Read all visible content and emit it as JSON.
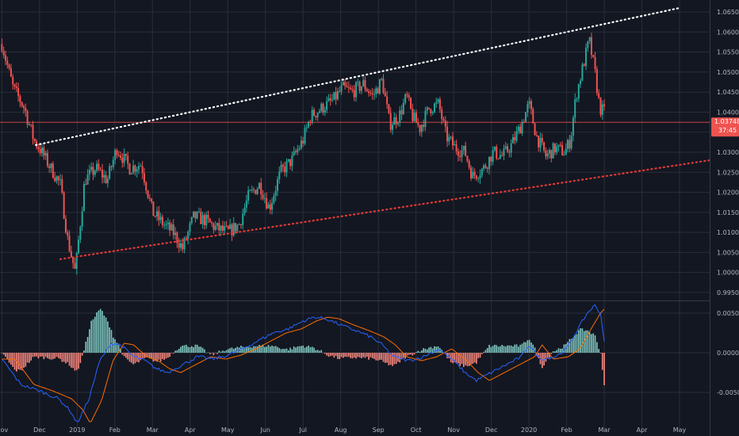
{
  "colors": {
    "background": "#131722",
    "grid": "#2a2e39",
    "separator": "#363a45",
    "text": "#b2b5be",
    "up": "#26a69a",
    "down": "#ef5350",
    "macd": "#2962ff",
    "signal": "#ff6d00",
    "hist_up": "#80cbc4",
    "hist_down": "#ff8a80",
    "upper_trendline": "#ffffff",
    "lower_trendline": "#e53935",
    "price_line": "#ef5350"
  },
  "chart_data": [
    {
      "type": "candlestick",
      "x_axis": {
        "labels": [
          {
            "t": 0.0,
            "text": "Nov"
          },
          {
            "t": 1.0,
            "text": "Dec"
          },
          {
            "t": 2.0,
            "text": "2019"
          },
          {
            "t": 3.0,
            "text": "Feb"
          },
          {
            "t": 4.0,
            "text": "Mar"
          },
          {
            "t": 5.0,
            "text": "Apr"
          },
          {
            "t": 6.0,
            "text": "May"
          },
          {
            "t": 7.0,
            "text": "Jun"
          },
          {
            "t": 8.0,
            "text": "Jul"
          },
          {
            "t": 9.0,
            "text": "Aug"
          },
          {
            "t": 10.0,
            "text": "Sep"
          },
          {
            "t": 11.0,
            "text": "Oct"
          },
          {
            "t": 12.0,
            "text": "Nov"
          },
          {
            "t": 13.0,
            "text": "Dec"
          },
          {
            "t": 14.0,
            "text": "2020"
          },
          {
            "t": 15.0,
            "text": "Feb"
          },
          {
            "t": 16.0,
            "text": "Mar"
          },
          {
            "t": 17.0,
            "text": "Apr"
          },
          {
            "t": 18.0,
            "text": "May"
          }
        ],
        "range": [
          -0.05,
          18.8
        ]
      },
      "y_axis": {
        "ticks": [
          "0.99500",
          "1.00000",
          "1.00500",
          "1.01000",
          "1.01500",
          "1.02000",
          "1.02500",
          "1.03000",
          "1.03500",
          "1.04000",
          "1.04500",
          "1.05000",
          "1.05500",
          "1.06000",
          "1.06500"
        ],
        "range": [
          0.9938,
          1.0672
        ]
      },
      "anchors": [
        [
          0.0,
          1.057
        ],
        [
          0.3,
          1.046
        ],
        [
          0.6,
          1.041
        ],
        [
          0.85,
          1.033
        ],
        [
          1.0,
          1.031
        ],
        [
          1.3,
          1.026
        ],
        [
          1.55,
          1.022
        ],
        [
          1.75,
          1.008
        ],
        [
          1.95,
          1.0
        ],
        [
          2.2,
          1.023
        ],
        [
          2.5,
          1.026
        ],
        [
          2.8,
          1.023
        ],
        [
          3.05,
          1.031
        ],
        [
          3.4,
          1.026
        ],
        [
          3.7,
          1.027
        ],
        [
          4.0,
          1.015
        ],
        [
          4.3,
          1.012
        ],
        [
          4.55,
          1.01
        ],
        [
          4.8,
          1.006
        ],
        [
          5.1,
          1.014
        ],
        [
          5.4,
          1.013
        ],
        [
          5.7,
          1.011
        ],
        [
          6.0,
          1.01
        ],
        [
          6.3,
          1.012
        ],
        [
          6.55,
          1.019
        ],
        [
          6.85,
          1.022
        ],
        [
          7.1,
          1.016
        ],
        [
          7.4,
          1.025
        ],
        [
          7.7,
          1.028
        ],
        [
          8.0,
          1.033
        ],
        [
          8.2,
          1.039
        ],
        [
          8.5,
          1.041
        ],
        [
          8.8,
          1.043
        ],
        [
          9.05,
          1.046
        ],
        [
          9.3,
          1.045
        ],
        [
          9.6,
          1.047
        ],
        [
          9.85,
          1.044
        ],
        [
          10.1,
          1.048
        ],
        [
          10.3,
          1.037
        ],
        [
          10.55,
          1.039
        ],
        [
          10.75,
          1.044
        ],
        [
          10.9,
          1.039
        ],
        [
          11.1,
          1.036
        ],
        [
          11.35,
          1.041
        ],
        [
          11.6,
          1.042
        ],
        [
          11.8,
          1.034
        ],
        [
          12.05,
          1.031
        ],
        [
          12.3,
          1.03
        ],
        [
          12.5,
          1.024
        ],
        [
          12.8,
          1.026
        ],
        [
          13.05,
          1.03
        ],
        [
          13.3,
          1.029
        ],
        [
          13.55,
          1.032
        ],
        [
          13.8,
          1.037
        ],
        [
          14.0,
          1.042
        ],
        [
          14.2,
          1.034
        ],
        [
          14.45,
          1.029
        ],
        [
          14.7,
          1.031
        ],
        [
          14.95,
          1.03
        ],
        [
          15.1,
          1.033
        ],
        [
          15.25,
          1.044
        ],
        [
          15.45,
          1.052
        ],
        [
          15.6,
          1.058
        ],
        [
          15.75,
          1.05
        ],
        [
          15.88,
          1.041
        ],
        [
          16.0,
          1.04
        ]
      ],
      "last_price": "1.03748",
      "countdown": "37:45",
      "last_value": 1.03748,
      "trendlines": [
        {
          "name": "upper",
          "style": "dotted",
          "from": [
            0.9,
            1.0318
          ],
          "to": [
            18.0,
            1.066
          ]
        },
        {
          "name": "lower",
          "style": "dotted",
          "from": [
            1.55,
            1.0033
          ],
          "to": [
            18.8,
            1.028
          ]
        }
      ]
    },
    {
      "type": "macd",
      "y_axis": {
        "ticks": [
          "0.00500",
          "0.00000",
          "-0.00500"
        ],
        "range": [
          -0.0095,
          0.0065
        ]
      },
      "macd_anchors": [
        [
          0.0,
          -0.0008
        ],
        [
          0.5,
          -0.004
        ],
        [
          1.0,
          -0.0048
        ],
        [
          1.5,
          -0.0058
        ],
        [
          1.8,
          -0.0072
        ],
        [
          2.0,
          -0.0089
        ],
        [
          2.3,
          -0.006
        ],
        [
          2.6,
          -0.001
        ],
        [
          2.9,
          0.0012
        ],
        [
          3.15,
          0.001
        ],
        [
          3.5,
          -0.0005
        ],
        [
          3.8,
          -0.001
        ],
        [
          4.1,
          -0.002
        ],
        [
          4.4,
          -0.0025
        ],
        [
          4.8,
          -0.0015
        ],
        [
          5.2,
          -0.0005
        ],
        [
          5.6,
          -0.0008
        ],
        [
          6.0,
          -0.0003
        ],
        [
          6.4,
          0.0005
        ],
        [
          6.8,
          0.0015
        ],
        [
          7.2,
          0.0025
        ],
        [
          7.6,
          0.003
        ],
        [
          8.0,
          0.004
        ],
        [
          8.3,
          0.0045
        ],
        [
          8.6,
          0.0043
        ],
        [
          9.0,
          0.0035
        ],
        [
          9.4,
          0.0028
        ],
        [
          9.8,
          0.002
        ],
        [
          10.1,
          0.001
        ],
        [
          10.4,
          -0.0005
        ],
        [
          10.8,
          -0.001
        ],
        [
          11.2,
          -0.0005
        ],
        [
          11.6,
          0.0005
        ],
        [
          12.0,
          -0.001
        ],
        [
          12.3,
          -0.0025
        ],
        [
          12.6,
          -0.0035
        ],
        [
          13.0,
          -0.0025
        ],
        [
          13.4,
          -0.0015
        ],
        [
          13.8,
          -0.0005
        ],
        [
          14.0,
          0.001
        ],
        [
          14.3,
          -0.0008
        ],
        [
          14.7,
          -0.0005
        ],
        [
          15.0,
          0.0005
        ],
        [
          15.3,
          0.003
        ],
        [
          15.55,
          0.005
        ],
        [
          15.75,
          0.006
        ],
        [
          15.9,
          0.005
        ],
        [
          16.0,
          0.0015
        ]
      ],
      "signal_lag": 0.35
    }
  ]
}
